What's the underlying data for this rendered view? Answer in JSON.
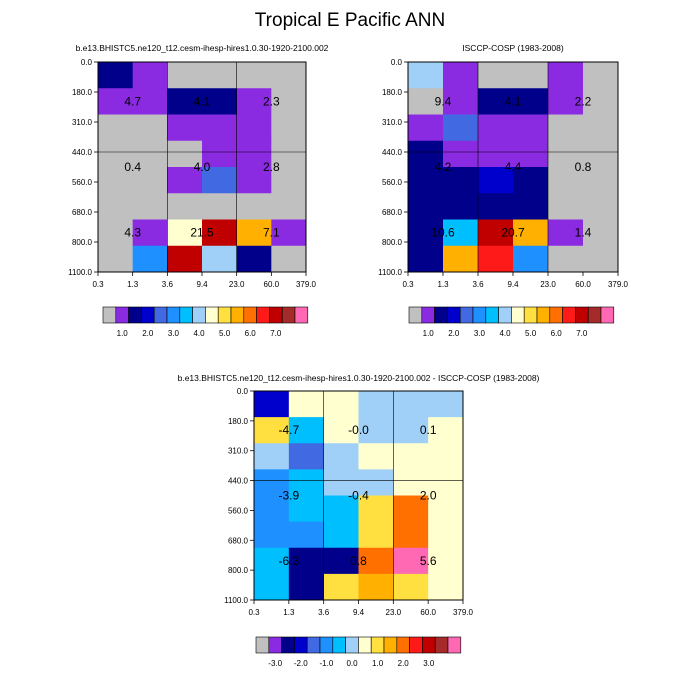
{
  "page": {
    "title": "Tropical E Pacific ANN"
  },
  "pressure_ticks": [
    "0.0",
    "180.0",
    "310.0",
    "440.0",
    "560.0",
    "680.0",
    "800.0",
    "1100.0"
  ],
  "tau_ticks": [
    "0.3",
    "1.3",
    "3.6",
    "9.4",
    "23.0",
    "60.0",
    "379.0"
  ],
  "palettes": {
    "abs": [
      "#c0c0c0",
      "#8a2be2",
      "#00008b",
      "#0000cd",
      "#4169e1",
      "#1e90ff",
      "#00bfff",
      "#a0d0f8",
      "#ffffd0",
      "#ffe040",
      "#ffb000",
      "#ff7000",
      "#ff1a1a",
      "#c00000",
      "#a52a2a",
      "#ff69b4"
    ],
    "diff": [
      "#c0c0c0",
      "#8a2be2",
      "#00008b",
      "#0000cd",
      "#4169e1",
      "#1e90ff",
      "#00bfff",
      "#a0d0f8",
      "#ffffd0",
      "#ffe040",
      "#ffb000",
      "#ff7000",
      "#ff1a1a",
      "#c00000",
      "#a52a2a",
      "#ff69b4"
    ]
  },
  "chart_data": [
    {
      "type": "heatmap",
      "title": "b.e13.BHISTC5.ne120_t12.cesm-ihesp-hires1.0.30-1920-2100.002",
      "colorbar": {
        "ticks": [
          "1.0",
          "2.0",
          "3.0",
          "4.0",
          "5.0",
          "6.0",
          "7.0"
        ],
        "tick_positions": [
          1.5,
          3.5,
          5.5,
          7.5,
          9.5,
          11.5,
          13.5
        ]
      },
      "cells": [
        [
          2,
          1,
          0,
          0,
          0,
          0
        ],
        [
          1,
          1,
          2,
          2,
          1,
          0
        ],
        [
          0,
          0,
          1,
          1,
          1,
          0
        ],
        [
          0,
          0,
          0,
          1,
          1,
          0
        ],
        [
          0,
          0,
          1,
          4,
          1,
          0
        ],
        [
          0,
          0,
          0,
          0,
          0,
          0
        ],
        [
          0,
          1,
          8,
          13,
          10,
          1
        ],
        [
          0,
          5,
          13,
          7,
          2,
          0
        ]
      ],
      "labels": [
        {
          "row": 1,
          "col": 0.5,
          "text": "4.7"
        },
        {
          "row": 1,
          "col": 2.5,
          "text": "4.1"
        },
        {
          "row": 1,
          "col": 4.5,
          "text": "2.3"
        },
        {
          "row": 3.5,
          "col": 0.5,
          "text": "0.4"
        },
        {
          "row": 3.5,
          "col": 2.5,
          "text": "4.0"
        },
        {
          "row": 3.5,
          "col": 4.5,
          "text": "2.8"
        },
        {
          "row": 6,
          "col": 0.5,
          "text": "4.3"
        },
        {
          "row": 6,
          "col": 2.5,
          "text": "21.5"
        },
        {
          "row": 6,
          "col": 4.5,
          "text": "7.1"
        }
      ]
    },
    {
      "type": "heatmap",
      "title": "ISCCP-COSP (1983-2008)",
      "colorbar": {
        "ticks": [
          "1.0",
          "2.0",
          "3.0",
          "4.0",
          "5.0",
          "6.0",
          "7.0"
        ],
        "tick_positions": [
          1.5,
          3.5,
          5.5,
          7.5,
          9.5,
          11.5,
          13.5
        ]
      },
      "cells": [
        [
          7,
          1,
          0,
          0,
          1,
          0
        ],
        [
          0,
          1,
          2,
          2,
          1,
          0
        ],
        [
          1,
          4,
          1,
          1,
          0,
          0
        ],
        [
          2,
          1,
          1,
          1,
          0,
          0
        ],
        [
          2,
          2,
          3,
          2,
          0,
          0
        ],
        [
          2,
          2,
          2,
          2,
          0,
          0
        ],
        [
          2,
          6,
          13,
          10,
          1,
          0
        ],
        [
          2,
          10,
          12,
          5,
          0,
          0
        ]
      ],
      "labels": [
        {
          "row": 1,
          "col": 0.5,
          "text": "9.4"
        },
        {
          "row": 1,
          "col": 2.5,
          "text": "4.1"
        },
        {
          "row": 1,
          "col": 4.5,
          "text": "2.2"
        },
        {
          "row": 3.5,
          "col": 0.5,
          "text": "4.2"
        },
        {
          "row": 3.5,
          "col": 2.5,
          "text": "4.4"
        },
        {
          "row": 3.5,
          "col": 4.5,
          "text": "0.8"
        },
        {
          "row": 6,
          "col": 0.5,
          "text": "10.6"
        },
        {
          "row": 6,
          "col": 2.5,
          "text": "20.7"
        },
        {
          "row": 6,
          "col": 4.5,
          "text": "1.4"
        }
      ]
    },
    {
      "type": "heatmap",
      "title": "b.e13.BHISTC5.ne120_t12.cesm-ihesp-hires1.0.30-1920-2100.002 - ISCCP-COSP (1983-2008)",
      "colorbar": {
        "ticks": [
          "-3.0",
          "-2.0",
          "-1.0",
          "0.0",
          "1.0",
          "2.0",
          "3.0"
        ],
        "tick_positions": [
          1.5,
          3.5,
          5.5,
          7.5,
          9.5,
          11.5,
          13.5
        ]
      },
      "cells": [
        [
          3,
          8,
          8,
          7,
          7,
          7
        ],
        [
          9,
          6,
          8,
          7,
          7,
          8
        ],
        [
          7,
          4,
          7,
          8,
          8,
          8
        ],
        [
          5,
          6,
          7,
          7,
          8,
          8
        ],
        [
          5,
          6,
          6,
          9,
          11,
          8
        ],
        [
          5,
          5,
          6,
          9,
          11,
          8
        ],
        [
          6,
          2,
          2,
          11,
          15,
          8
        ],
        [
          6,
          2,
          9,
          10,
          9,
          8
        ]
      ],
      "labels": [
        {
          "row": 1,
          "col": 0.5,
          "text": "-4.7"
        },
        {
          "row": 1,
          "col": 2.5,
          "text": "-0.0"
        },
        {
          "row": 1,
          "col": 4.5,
          "text": "0.1"
        },
        {
          "row": 3.5,
          "col": 0.5,
          "text": "-3.9"
        },
        {
          "row": 3.5,
          "col": 2.5,
          "text": "-0.4"
        },
        {
          "row": 3.5,
          "col": 4.5,
          "text": "2.0"
        },
        {
          "row": 6,
          "col": 0.5,
          "text": "-6.3"
        },
        {
          "row": 6,
          "col": 2.5,
          "text": "0.8"
        },
        {
          "row": 6,
          "col": 4.5,
          "text": "5.6"
        }
      ]
    }
  ]
}
